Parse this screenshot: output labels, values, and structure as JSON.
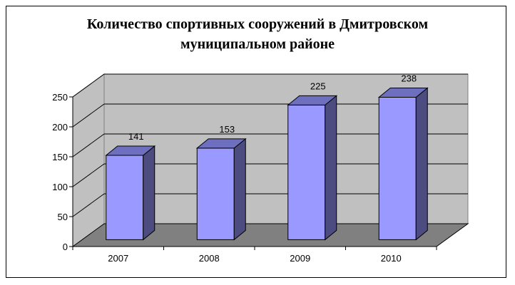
{
  "chart_data": {
    "type": "bar",
    "title": "Количество спортивных сооружений в Дмитровском муниципальном районе",
    "title_lines": [
      "Количество спортивных сооружений в Дмитровском",
      "муниципальном районе"
    ],
    "categories": [
      "2007",
      "2008",
      "2009",
      "2010"
    ],
    "values": [
      141,
      153,
      225,
      238
    ],
    "data_labels": [
      "141",
      "153",
      "225",
      "238"
    ],
    "xlabel": "",
    "ylabel": "",
    "ylim": [
      0,
      250
    ],
    "yticks": [
      "0",
      "50",
      "100",
      "150",
      "200",
      "250"
    ],
    "grid": true,
    "legend": "none",
    "style": "3d-column",
    "colors": {
      "bar_front": "#9999ff",
      "bar_side": "#4c4c80",
      "bar_top": "#6f6fc0",
      "wall": "#c0c0c0",
      "floor": "#808080",
      "outline": "#000000"
    }
  }
}
